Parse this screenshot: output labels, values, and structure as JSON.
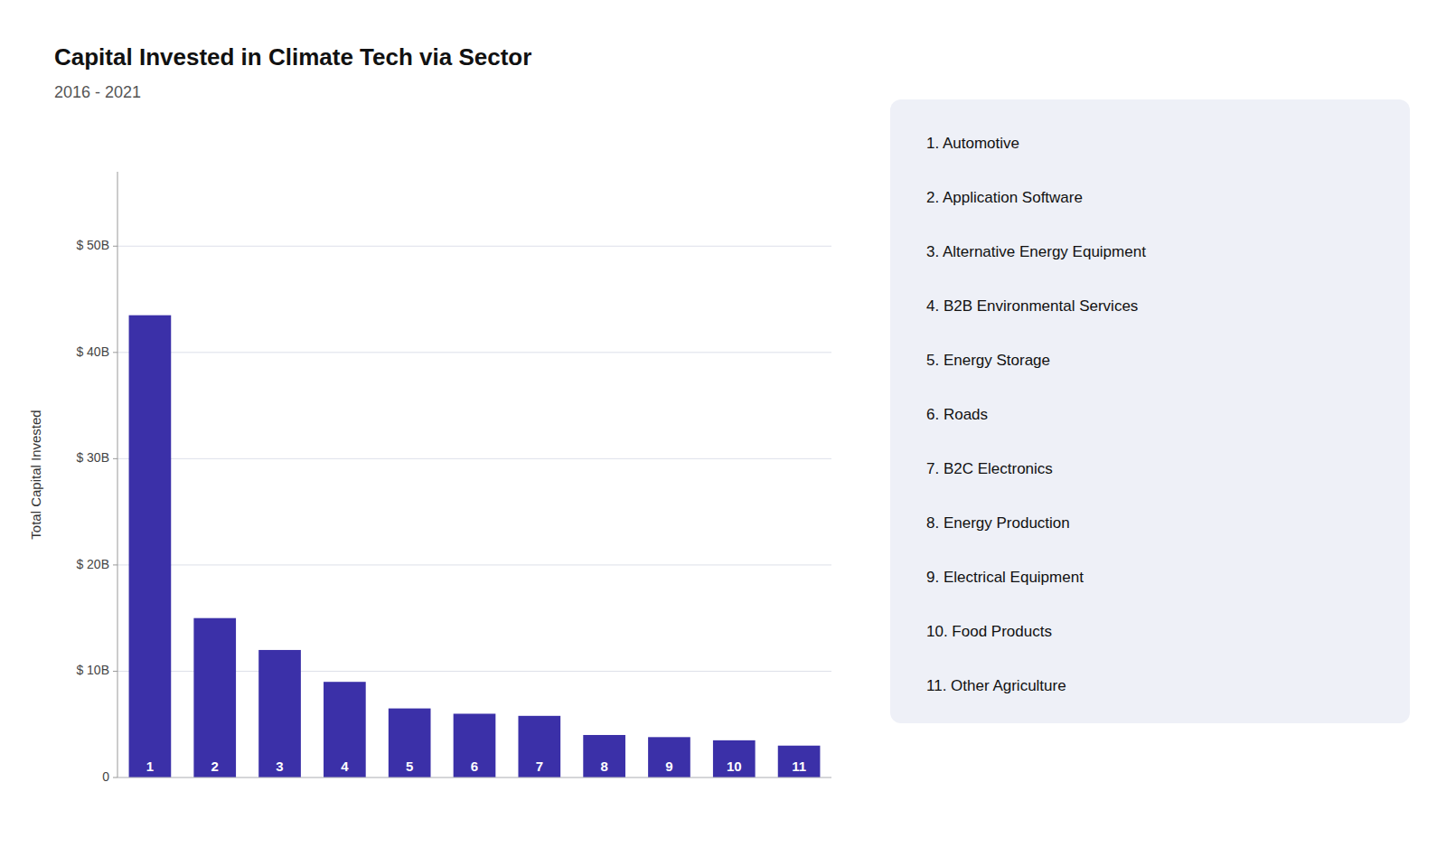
{
  "chart_data": {
    "type": "bar",
    "title": "Capital Invested in Climate Tech via Sector",
    "subtitle": "2016 - 2021",
    "y_label": "Total Capital Invested",
    "categories": [
      "1",
      "2",
      "3",
      "4",
      "5",
      "6",
      "7",
      "8",
      "9",
      "10",
      "11"
    ],
    "values": [
      43.5,
      15.0,
      12.0,
      9.0,
      6.5,
      6.0,
      5.8,
      4.0,
      3.8,
      3.5,
      3.0
    ],
    "color": "#3B30A8",
    "ylim": [
      0,
      57
    ],
    "yticks": [
      0,
      {
        "value": 10,
        "label": "$ 10B"
      },
      {
        "value": 20,
        "label": "$ 20B"
      },
      {
        "value": 30,
        "label": "$ 30B"
      },
      {
        "value": 40,
        "label": "$ 40B"
      },
      {
        "value": 50,
        "label": "$ 50B"
      }
    ],
    "grid": true,
    "annotations": [
      "1.    Automotive",
      "2.    Application Software",
      "3.    Alternative Energy Equipment",
      "4.    B2B Environmental Services",
      "5.    Energy Storage",
      "6.    Roads",
      "7.    B2C Electronics",
      "8.    Energy Production",
      "9.    Electrical Equipment",
      "10.  Food Products",
      "11.  Other Agriculture"
    ]
  }
}
